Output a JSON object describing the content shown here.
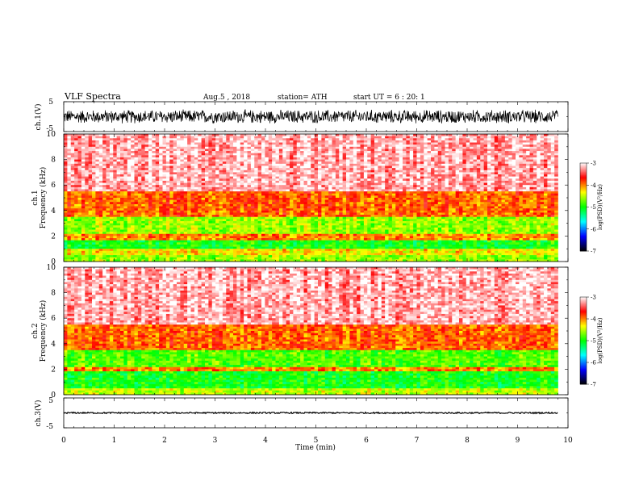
{
  "header": {
    "title": "VLF  Spectra",
    "date": "Aug.5  , 2018",
    "station": "station= ATH",
    "start": "start  UT  =   6  : 20: 1"
  },
  "chart_data": [
    {
      "type": "line",
      "name": "ch1-waveform",
      "ylabel": "ch.1(V)",
      "ylim": [
        -5,
        5
      ],
      "yticks": [
        "5",
        "-5"
      ],
      "x_range_min": [
        0,
        9.8
      ],
      "amplitude_v": 2.5,
      "color": "#000000"
    },
    {
      "type": "heatmap",
      "name": "ch1-spectrogram",
      "ylabel_line1": "ch.1",
      "ylabel_line2": "Frequency  (kHz)",
      "ylim": [
        0,
        10
      ],
      "yticks": [
        "0",
        "2",
        "4",
        "6",
        "8",
        "10"
      ],
      "x_range_min": [
        0,
        9.8
      ],
      "bands": [
        {
          "from_khz": 0.0,
          "to_khz": 0.5,
          "log_psd": -4.6
        },
        {
          "from_khz": 0.5,
          "to_khz": 1.0,
          "log_psd": -4.3
        },
        {
          "from_khz": 1.0,
          "to_khz": 1.7,
          "log_psd": -5.0
        },
        {
          "from_khz": 1.7,
          "to_khz": 2.1,
          "log_psd": -4.0
        },
        {
          "from_khz": 2.1,
          "to_khz": 3.5,
          "log_psd": -4.6
        },
        {
          "from_khz": 3.5,
          "to_khz": 5.5,
          "log_psd": -3.9
        },
        {
          "from_khz": 5.5,
          "to_khz": 10.0,
          "log_psd": -3.2
        }
      ]
    },
    {
      "type": "heatmap",
      "name": "ch2-spectrogram",
      "ylabel_line1": "ch.2",
      "ylabel_line2": "Frequency  (kHz)",
      "ylim": [
        0,
        10
      ],
      "yticks": [
        "0",
        "2",
        "4",
        "6",
        "8",
        "10"
      ],
      "x_range_min": [
        0,
        9.8
      ],
      "bands": [
        {
          "from_khz": 0.0,
          "to_khz": 0.5,
          "log_psd": -4.5
        },
        {
          "from_khz": 0.5,
          "to_khz": 1.9,
          "log_psd": -5.0
        },
        {
          "from_khz": 1.9,
          "to_khz": 2.1,
          "log_psd": -4.0
        },
        {
          "from_khz": 2.1,
          "to_khz": 3.5,
          "log_psd": -4.8
        },
        {
          "from_khz": 3.5,
          "to_khz": 5.5,
          "log_psd": -3.9
        },
        {
          "from_khz": 5.5,
          "to_khz": 10.0,
          "log_psd": -3.2
        }
      ]
    },
    {
      "type": "line",
      "name": "ch3-waveform",
      "ylabel": "ch.3(V)",
      "ylim": [
        -5,
        5
      ],
      "yticks": [
        "5",
        "-5"
      ],
      "x_range_min": [
        0,
        9.8
      ],
      "offset_v": 0.0,
      "color": "#000000"
    }
  ],
  "x_axis": {
    "label": "Time  (min)",
    "min": 0,
    "max": 10,
    "ticks": [
      "0",
      "1",
      "2",
      "3",
      "4",
      "5",
      "6",
      "7",
      "8",
      "9",
      "10"
    ]
  },
  "colorbar": {
    "label": "log(PSD)(V²/Hz)",
    "min": -7,
    "max": -3,
    "ticks": [
      "-3",
      "-4",
      "-5",
      "-6",
      "-7"
    ],
    "stops": [
      "#000000",
      "#0000ff",
      "#00ffff",
      "#00ff00",
      "#ffff00",
      "#ff0000",
      "#ffffff"
    ]
  }
}
